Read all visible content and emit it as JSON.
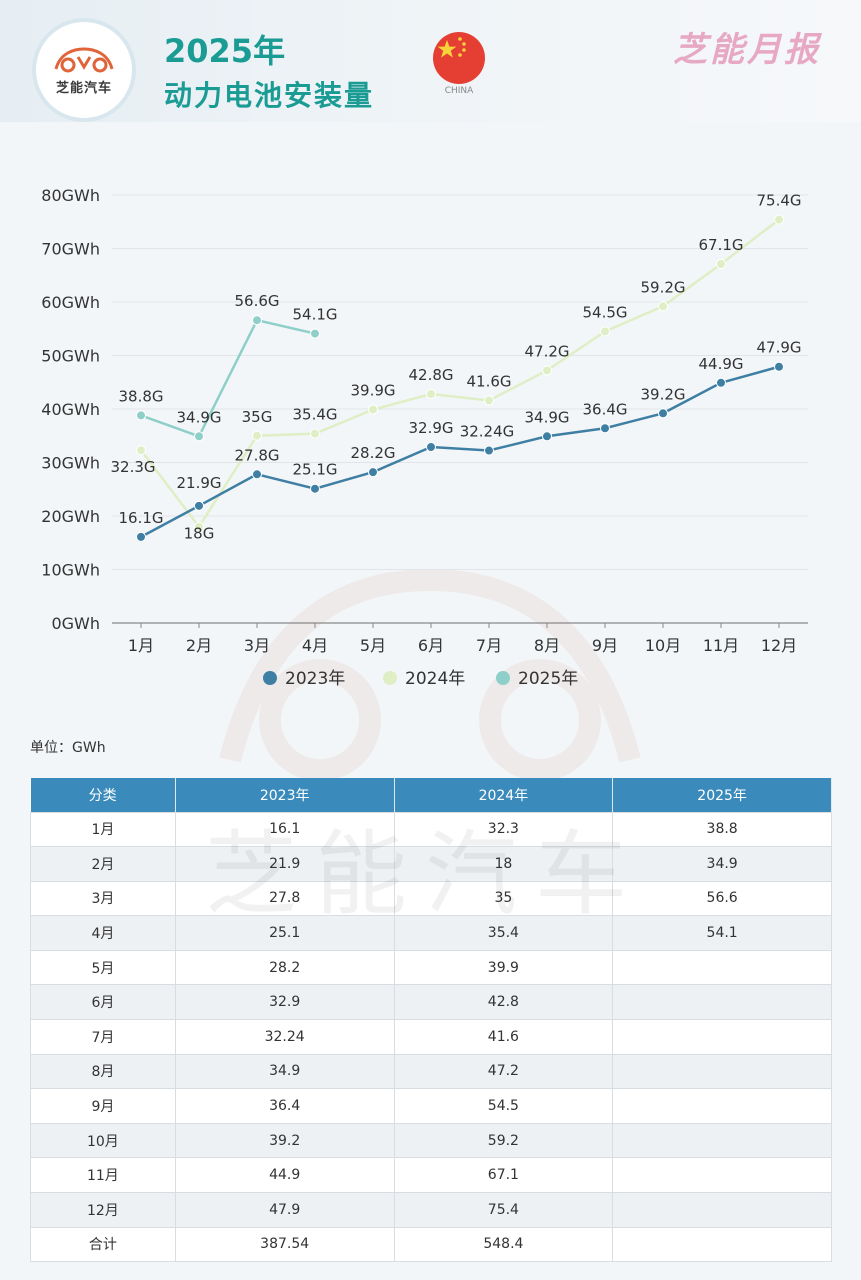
{
  "header": {
    "logo_text": "芝能汽车",
    "title_year": "2025年",
    "title_main": "动力电池安装量",
    "flag_label": "CHINA",
    "brand_mark": "芝能月报"
  },
  "colors": {
    "s2023": "#3f7fa3",
    "s2024": "#dfeec4",
    "s2025": "#8fcfca",
    "table_header": "#3a8bbc",
    "title": "#1a9b93"
  },
  "chart_data": {
    "type": "line",
    "title": "2025年 动力电池安装量",
    "xlabel": "",
    "ylabel": "",
    "categories": [
      "1月",
      "2月",
      "3月",
      "4月",
      "5月",
      "6月",
      "7月",
      "8月",
      "9月",
      "10月",
      "11月",
      "12月"
    ],
    "yticks": [
      "0GWh",
      "10GWh",
      "20GWh",
      "30GWh",
      "40GWh",
      "50GWh",
      "60GWh",
      "70GWh",
      "80GWh"
    ],
    "ylim": [
      0,
      80
    ],
    "grid": true,
    "legend_position": "bottom",
    "series": [
      {
        "name": "2023年",
        "values": [
          16.1,
          21.9,
          27.8,
          25.1,
          28.2,
          32.9,
          32.24,
          34.9,
          36.4,
          39.2,
          44.9,
          47.9
        ],
        "labels": [
          "16.1G",
          "21.9G",
          "27.8G",
          "25.1G",
          "28.2G",
          "32.9G",
          "32.24G",
          "34.9G",
          "36.4G",
          "39.2G",
          "44.9G",
          "47.9G"
        ]
      },
      {
        "name": "2024年",
        "values": [
          32.3,
          18,
          35,
          35.4,
          39.9,
          42.8,
          41.6,
          47.2,
          54.5,
          59.2,
          67.1,
          75.4
        ],
        "labels": [
          "32.3G",
          "18G",
          "35G",
          "35.4G",
          "39.9G",
          "42.8G",
          "41.6G",
          "47.2G",
          "54.5G",
          "59.2G",
          "67.1G",
          "75.4G"
        ]
      },
      {
        "name": "2025年",
        "values": [
          38.8,
          34.9,
          56.6,
          54.1
        ],
        "labels": [
          "38.8G",
          "34.9G",
          "56.6G",
          "54.1G"
        ]
      }
    ]
  },
  "unit_label": "单位：GWh",
  "table": {
    "headers": [
      "分类",
      "2023年",
      "2024年",
      "2025年"
    ],
    "rows": [
      [
        "1月",
        "16.1",
        "32.3",
        "38.8"
      ],
      [
        "2月",
        "21.9",
        "18",
        "34.9"
      ],
      [
        "3月",
        "27.8",
        "35",
        "56.6"
      ],
      [
        "4月",
        "25.1",
        "35.4",
        "54.1"
      ],
      [
        "5月",
        "28.2",
        "39.9",
        ""
      ],
      [
        "6月",
        "32.9",
        "42.8",
        ""
      ],
      [
        "7月",
        "32.24",
        "41.6",
        ""
      ],
      [
        "8月",
        "34.9",
        "47.2",
        ""
      ],
      [
        "9月",
        "36.4",
        "54.5",
        ""
      ],
      [
        "10月",
        "39.2",
        "59.2",
        ""
      ],
      [
        "11月",
        "44.9",
        "67.1",
        ""
      ],
      [
        "12月",
        "47.9",
        "75.4",
        ""
      ],
      [
        "合计",
        "387.54",
        "548.4",
        ""
      ]
    ]
  },
  "watermark_text": "芝能汽车"
}
